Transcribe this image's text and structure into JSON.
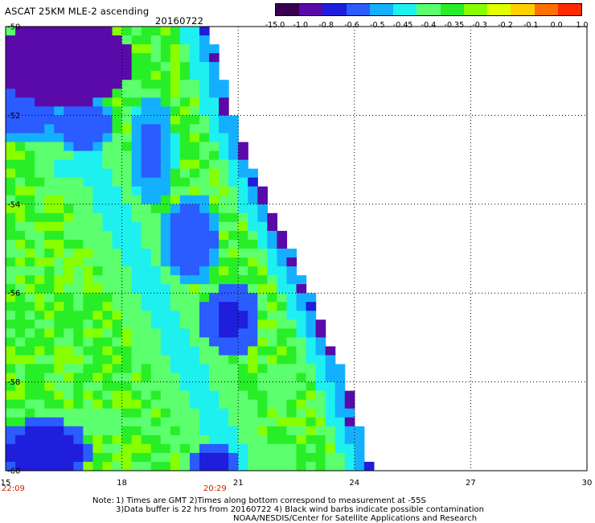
{
  "header": {
    "title": "ASCAT 25KM MLE-2 ascending",
    "date": "20160722"
  },
  "colorbar": {
    "labels": [
      "-15.0",
      "-1.0",
      "-0.8",
      "-0.6",
      "-0.5",
      "-0.45",
      "-0.4",
      "-0.35",
      "-0.3",
      "-0.2",
      "-0.1",
      "0.0",
      "1.0"
    ],
    "colors": [
      "#3a0050",
      "#5a0aa8",
      "#1e1edc",
      "#2a5cff",
      "#14b0ff",
      "#1ef0f0",
      "#5cff6e",
      "#28ee28",
      "#88ff00",
      "#e0ff00",
      "#ffd000",
      "#ff7000",
      "#ff2a00"
    ]
  },
  "chart_data": {
    "type": "heatmap",
    "title": "ASCAT 25KM MLE-2 ascending",
    "xlabel": "",
    "ylabel": "",
    "xlim": [
      15,
      30
    ],
    "ylim": [
      -60,
      -50
    ],
    "x_ticks": [
      "15",
      "18",
      "21",
      "24",
      "27",
      "30"
    ],
    "y_ticks": [
      "-50",
      "-52",
      "-54",
      "-56",
      "-58",
      "-60"
    ],
    "time_labels": [
      {
        "x": 15,
        "text": "22:09"
      },
      {
        "x": 20.4,
        "text": "20:29"
      }
    ],
    "time_color": "#cc2200",
    "grid": true,
    "swath_edge": [
      {
        "lat": -50.0,
        "lon": 20.4
      },
      {
        "lat": -52.0,
        "lon": 21.0
      },
      {
        "lat": -54.0,
        "lon": 21.9
      },
      {
        "lat": -56.0,
        "lon": 23.0
      },
      {
        "lat": -58.0,
        "lon": 23.9
      },
      {
        "lat": -60.0,
        "lon": 24.6
      }
    ],
    "regions": [
      {
        "lon": 16.5,
        "lat": -50.8,
        "value": -1.2,
        "rx": 1.8,
        "ry": 1.0
      },
      {
        "lon": 15.5,
        "lat": -51.5,
        "value": -0.7,
        "rx": 1.2,
        "ry": 1.2
      },
      {
        "lon": 17.0,
        "lat": -52.2,
        "value": -0.75,
        "rx": 0.8,
        "ry": 0.6
      },
      {
        "lon": 18.8,
        "lat": -52.8,
        "value": -0.65,
        "rx": 0.6,
        "ry": 1.3
      },
      {
        "lon": 16.8,
        "lat": -53.2,
        "value": -0.48,
        "rx": 1.6,
        "ry": 0.6
      },
      {
        "lon": 19.8,
        "lat": -54.8,
        "value": -0.7,
        "rx": 0.8,
        "ry": 1.0
      },
      {
        "lon": 20.8,
        "lat": -56.6,
        "value": -0.85,
        "rx": 0.8,
        "ry": 0.8
      },
      {
        "lon": 20.4,
        "lat": -57.8,
        "value": -0.45,
        "rx": 1.0,
        "ry": 0.8
      },
      {
        "lon": 16.0,
        "lat": -59.6,
        "value": -0.9,
        "rx": 1.2,
        "ry": 0.8
      },
      {
        "lon": 20.4,
        "lat": -59.8,
        "value": -0.85,
        "rx": 0.6,
        "ry": 0.4
      },
      {
        "lon": 17.5,
        "lat": -58.9,
        "value": -0.45,
        "rx": 2.4,
        "ry": 0.4
      },
      {
        "lon": 22.0,
        "lat": -58.0,
        "value": -0.45,
        "rx": 0.8,
        "ry": 0.6
      },
      {
        "lon": 18.0,
        "lat": -56.0,
        "value": -0.32,
        "rx": 1.5,
        "ry": 1.5
      }
    ],
    "background_value": -0.38
  },
  "notes": {
    "line1_prefix": "Note:",
    "line1": "1) Times are GMT 2)Times along bottom correspond to measurement at -55S",
    "line2": "3)Data buffer is 22 hrs from 20160722 4) Black wind barbs indicate possible contamination",
    "line3": "NOAA/NESDIS/Center for Satellite Applications and Research"
  }
}
